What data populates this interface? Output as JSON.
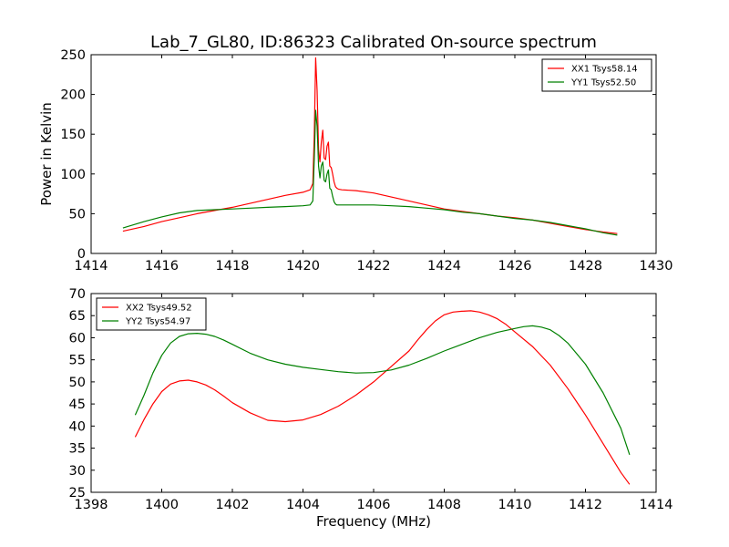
{
  "chart_data": [
    {
      "type": "line",
      "title": "Lab_7_GL80, ID:86323 Calibrated On-source spectrum",
      "xlabel": "",
      "ylabel": "Power in Kelvin",
      "xlim": [
        1414,
        1430
      ],
      "ylim": [
        0,
        250
      ],
      "xticks": [
        1414,
        1416,
        1418,
        1420,
        1422,
        1424,
        1426,
        1428,
        1430
      ],
      "yticks": [
        0,
        50,
        100,
        150,
        200,
        250
      ],
      "legend": "top-right",
      "series": [
        {
          "name": "XX1 Tsys58.14",
          "color": "#ff0000",
          "x": [
            1414.9,
            1415.5,
            1416,
            1416.5,
            1417,
            1417.5,
            1418,
            1418.5,
            1419,
            1419.5,
            1420,
            1420.2,
            1420.28,
            1420.32,
            1420.36,
            1420.4,
            1420.44,
            1420.48,
            1420.52,
            1420.56,
            1420.6,
            1420.64,
            1420.68,
            1420.72,
            1420.76,
            1420.8,
            1420.84,
            1420.88,
            1420.92,
            1420.96,
            1421.0,
            1421.1,
            1421.5,
            1422,
            1422.5,
            1423,
            1423.5,
            1424,
            1424.5,
            1425,
            1425.5,
            1426,
            1426.5,
            1427,
            1427.5,
            1428,
            1428.5,
            1428.9
          ],
          "values": [
            28,
            34,
            40,
            45,
            50,
            54,
            58,
            63,
            68,
            73,
            77,
            80,
            88,
            150,
            246,
            205,
            130,
            115,
            140,
            155,
            120,
            118,
            135,
            140,
            110,
            108,
            100,
            90,
            84,
            82,
            81,
            80,
            79,
            76,
            71,
            66,
            61,
            56,
            53,
            50,
            47,
            45,
            42,
            38,
            34,
            30,
            27,
            25
          ]
        },
        {
          "name": "YY1 Tsys52.50",
          "color": "#008000",
          "x": [
            1414.9,
            1415.5,
            1416,
            1416.5,
            1417,
            1417.5,
            1418,
            1418.5,
            1419,
            1419.5,
            1420,
            1420.2,
            1420.28,
            1420.32,
            1420.36,
            1420.4,
            1420.44,
            1420.48,
            1420.52,
            1420.56,
            1420.6,
            1420.64,
            1420.68,
            1420.72,
            1420.76,
            1420.8,
            1420.84,
            1420.88,
            1420.92,
            1420.96,
            1421.0,
            1421.1,
            1421.5,
            1422,
            1422.5,
            1423,
            1423.5,
            1424,
            1424.5,
            1425,
            1425.5,
            1426,
            1426.5,
            1427,
            1427.5,
            1428,
            1428.5,
            1428.9
          ],
          "values": [
            32,
            40,
            46,
            51,
            54,
            55,
            56,
            57,
            58,
            59,
            60,
            61,
            66,
            120,
            180,
            160,
            110,
            95,
            110,
            115,
            92,
            90,
            100,
            105,
            82,
            80,
            72,
            65,
            62,
            61,
            61,
            61,
            61,
            61,
            60,
            59,
            57,
            55,
            52,
            50,
            47,
            44,
            42,
            39,
            35,
            31,
            26,
            23
          ]
        }
      ]
    },
    {
      "type": "line",
      "title": "",
      "xlabel": "Frequency (MHz)",
      "ylabel": "",
      "xlim": [
        1398,
        1414
      ],
      "ylim": [
        25,
        70
      ],
      "xticks": [
        1398,
        1400,
        1402,
        1404,
        1406,
        1408,
        1410,
        1412,
        1414
      ],
      "yticks": [
        25,
        30,
        35,
        40,
        45,
        50,
        55,
        60,
        65,
        70
      ],
      "legend": "top-left",
      "series": [
        {
          "name": "XX2 Tsys49.52",
          "color": "#ff0000",
          "x": [
            1399.25,
            1399.5,
            1399.75,
            1400,
            1400.25,
            1400.5,
            1400.75,
            1401,
            1401.25,
            1401.5,
            1401.75,
            1402,
            1402.5,
            1403,
            1403.5,
            1404,
            1404.5,
            1405,
            1405.5,
            1406,
            1406.5,
            1407,
            1407.25,
            1407.5,
            1407.75,
            1408,
            1408.25,
            1408.5,
            1408.75,
            1409,
            1409.25,
            1409.5,
            1409.75,
            1410,
            1410.5,
            1411,
            1411.5,
            1412,
            1412.5,
            1413,
            1413.25
          ],
          "values": [
            37.5,
            41.5,
            45,
            47.8,
            49.5,
            50.2,
            50.4,
            50,
            49.3,
            48.2,
            46.8,
            45.3,
            43,
            41.3,
            41,
            41.4,
            42.6,
            44.5,
            47,
            50,
            53.5,
            57,
            59.5,
            61.8,
            63.8,
            65.2,
            65.8,
            66,
            66.1,
            65.8,
            65.2,
            64.3,
            63,
            61.3,
            58,
            53.8,
            48.5,
            42.5,
            36,
            29.5,
            26.8
          ]
        },
        {
          "name": "YY2 Tsys54.97",
          "color": "#008000",
          "x": [
            1399.25,
            1399.5,
            1399.75,
            1400,
            1400.25,
            1400.5,
            1400.75,
            1401,
            1401.25,
            1401.5,
            1401.75,
            1402,
            1402.5,
            1403,
            1403.5,
            1404,
            1404.5,
            1405,
            1405.5,
            1406,
            1406.5,
            1407,
            1407.5,
            1408,
            1408.5,
            1409,
            1409.5,
            1410,
            1410.25,
            1410.5,
            1410.75,
            1411,
            1411.25,
            1411.5,
            1412,
            1412.5,
            1413,
            1413.25
          ],
          "values": [
            42.5,
            47,
            52,
            56,
            58.8,
            60.3,
            60.9,
            61,
            60.8,
            60.3,
            59.5,
            58.5,
            56.5,
            55,
            54,
            53.3,
            52.8,
            52.3,
            52,
            52.1,
            52.7,
            53.8,
            55.3,
            57,
            58.5,
            60,
            61.2,
            62.1,
            62.5,
            62.7,
            62.4,
            61.8,
            60.5,
            58.8,
            54,
            47.5,
            39.5,
            33.5
          ]
        }
      ]
    }
  ]
}
